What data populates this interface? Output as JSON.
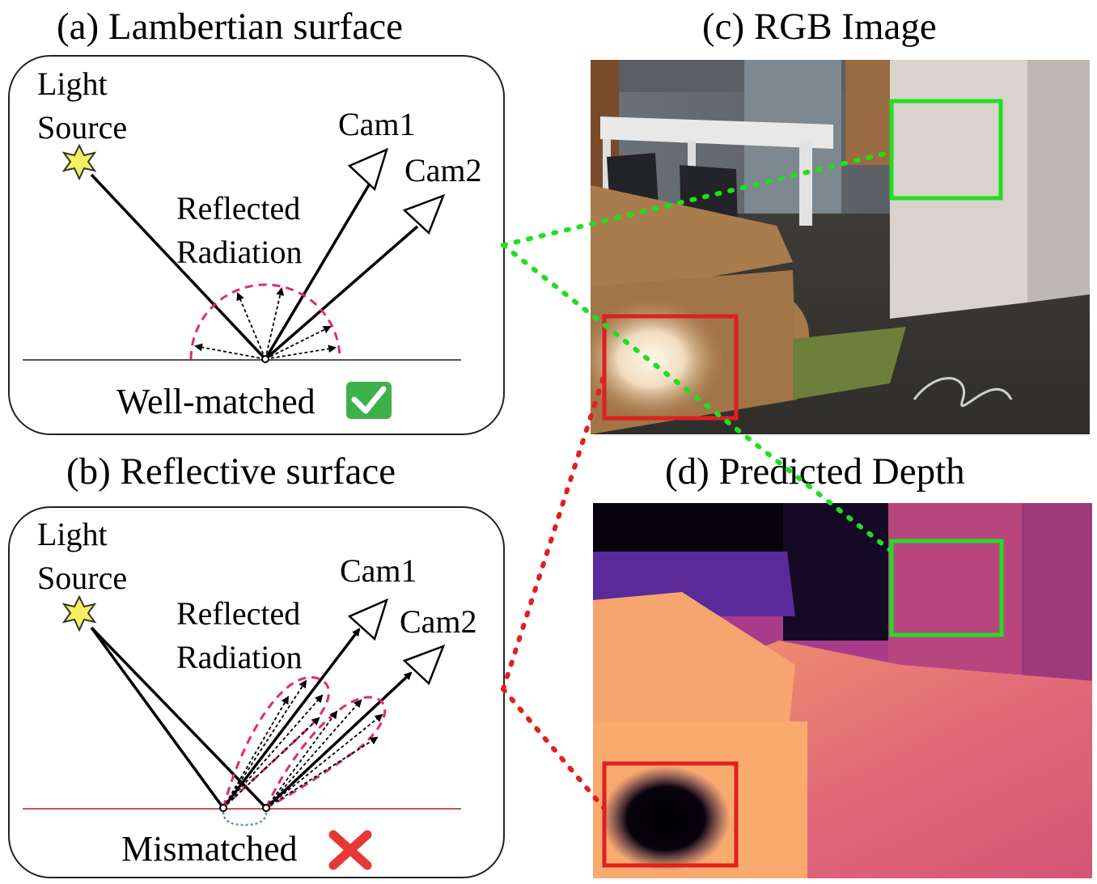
{
  "panels": {
    "a": {
      "title": "(a) Lambertian surface",
      "light_source": [
        "Light",
        "Source"
      ],
      "cam1": "Cam1",
      "cam2": "Cam2",
      "reflected": [
        "Reflected",
        "Radiation"
      ],
      "status": "Well-matched",
      "status_icon": "check-mark-icon"
    },
    "b": {
      "title": "(b) Reflective surface",
      "light_source": [
        "Light",
        "Source"
      ],
      "cam1": "Cam1",
      "cam2": "Cam2",
      "reflected": [
        "Reflected",
        "Radiation"
      ],
      "status": "Mismatched",
      "status_icon": "cross-mark-icon"
    },
    "c": {
      "title": "(c) RGB Image"
    },
    "d": {
      "title": "(d) Predicted Depth"
    }
  },
  "colors": {
    "good_region": "#22dd22",
    "bad_region": "#e02020",
    "lobe": "#e0287a",
    "star": "#f5f060",
    "check_bg": "#3db14a",
    "cross": "#e53935"
  }
}
